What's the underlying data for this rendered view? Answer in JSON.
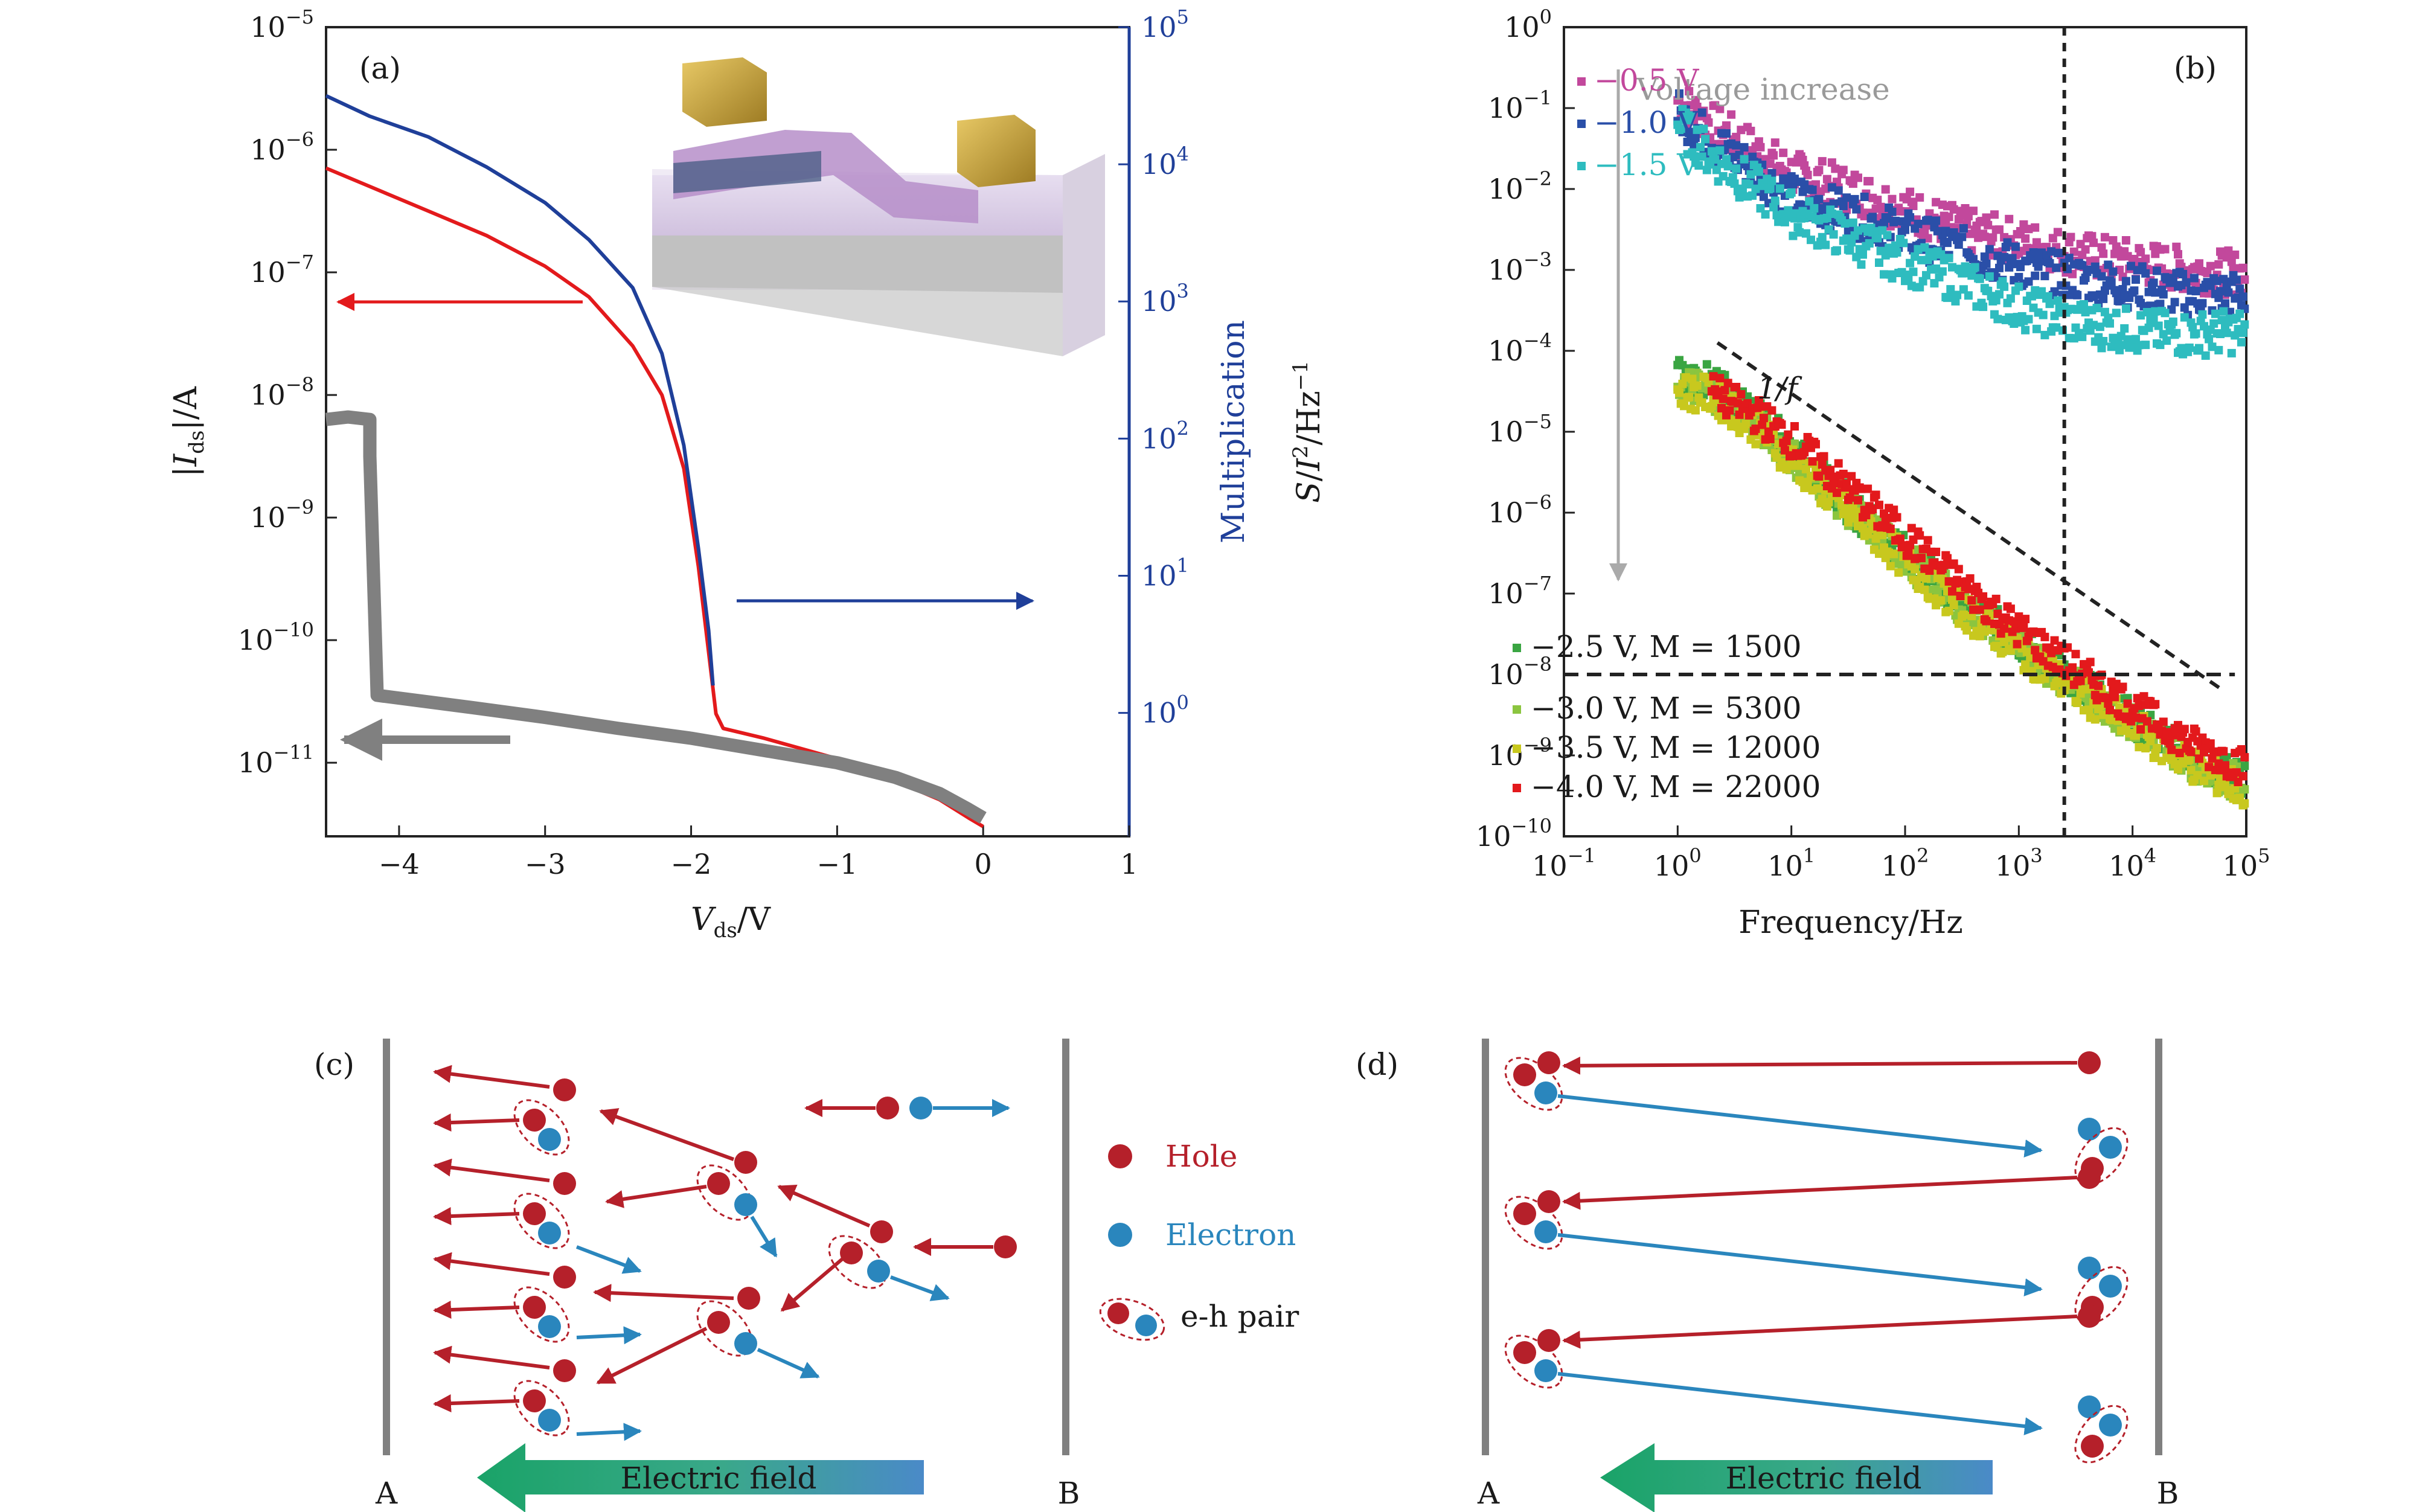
{
  "panels": {
    "a": {
      "label": "(a)"
    },
    "b": {
      "label": "(b)"
    },
    "c": {
      "label": "(c)"
    },
    "d": {
      "label": "(d)"
    }
  },
  "chart_data": [
    {
      "panel": "(a)",
      "type": "line",
      "xlabel": "V_ds/V",
      "ylabel": "|I_ds|/A",
      "y2label": "Multiplication",
      "xlim": [
        -4.5,
        1.0
      ],
      "ylim_log10": [
        -11.6,
        -5
      ],
      "y2lim_log10": [
        -0.9,
        5
      ],
      "x_ticks": [
        "−4",
        "−3",
        "−2",
        "−1",
        "0",
        "1"
      ],
      "x_tick_values": [
        -4,
        -3,
        -2,
        -1,
        0,
        1
      ],
      "y_ticks": [
        "10^-11",
        "10^-10",
        "10^-9",
        "10^-8",
        "10^-7",
        "10^-6",
        "10^-5"
      ],
      "y_tick_exponents": [
        -11,
        -10,
        -9,
        -8,
        -7,
        -6,
        -5
      ],
      "y2_ticks": [
        "10^0",
        "10^1",
        "10^2",
        "10^3",
        "10^4",
        "10^5"
      ],
      "y2_tick_exponents": [
        0,
        1,
        2,
        3,
        4,
        5
      ],
      "series": [
        {
          "color": "#e31a1c",
          "axis": "left",
          "points": [
            [
              -4.5,
              -6.15
            ],
            [
              -4.2,
              -6.3
            ],
            [
              -3.8,
              -6.5
            ],
            [
              -3.4,
              -6.7
            ],
            [
              -3.0,
              -6.95
            ],
            [
              -2.7,
              -7.2
            ],
            [
              -2.4,
              -7.6
            ],
            [
              -2.2,
              -8.0
            ],
            [
              -2.05,
              -8.6
            ],
            [
              -1.95,
              -9.4
            ],
            [
              -1.88,
              -10.1
            ],
            [
              -1.83,
              -10.6
            ],
            [
              -1.78,
              -10.72
            ],
            [
              -1.5,
              -10.8
            ],
            [
              -1.2,
              -10.9
            ],
            [
              -0.9,
              -11.0
            ],
            [
              -0.6,
              -11.15
            ],
            [
              -0.3,
              -11.3
            ],
            [
              -0.1,
              -11.45
            ],
            [
              0.0,
              -11.52
            ]
          ]
        },
        {
          "color": "#1f3f99",
          "axis": "right",
          "points": [
            [
              -4.5,
              4.5
            ],
            [
              -4.2,
              4.35
            ],
            [
              -3.8,
              4.2
            ],
            [
              -3.4,
              3.98
            ],
            [
              -3.0,
              3.72
            ],
            [
              -2.7,
              3.45
            ],
            [
              -2.4,
              3.1
            ],
            [
              -2.2,
              2.62
            ],
            [
              -2.05,
              1.95
            ],
            [
              -1.95,
              1.2
            ],
            [
              -1.88,
              0.6
            ],
            [
              -1.85,
              0.2
            ]
          ]
        },
        {
          "color": "#808080",
          "axis": "left",
          "points": [
            [
              -4.5,
              -8.2
            ],
            [
              -4.35,
              -8.18
            ],
            [
              -4.2,
              -8.2
            ],
            [
              -4.2,
              -8.5
            ],
            [
              -4.15,
              -10.45
            ],
            [
              -3.5,
              -10.55
            ],
            [
              -3.0,
              -10.63
            ],
            [
              -2.5,
              -10.72
            ],
            [
              -2.0,
              -10.8
            ],
            [
              -1.5,
              -10.9
            ],
            [
              -1.0,
              -11.0
            ],
            [
              -0.6,
              -11.12
            ],
            [
              -0.3,
              -11.25
            ],
            [
              -0.1,
              -11.38
            ],
            [
              0.0,
              -11.45
            ]
          ]
        }
      ]
    },
    {
      "panel": "(b)",
      "type": "scatter",
      "xlabel": "Frequency/Hz",
      "ylabel": "S/I^2/Hz^-1",
      "xlim_log10": [
        -1,
        5
      ],
      "ylim_log10": [
        -10,
        0
      ],
      "x_ticks": [
        "10^-1",
        "10^0",
        "10^1",
        "10^2",
        "10^3",
        "10^4",
        "10^5"
      ],
      "x_tick_exponents": [
        -1,
        0,
        1,
        2,
        3,
        4,
        5
      ],
      "y_ticks": [
        "10^-10",
        "10^-9",
        "10^-8",
        "10^-7",
        "10^-6",
        "10^-5",
        "10^-4",
        "10^-3",
        "10^-2",
        "10^-1",
        "10^0"
      ],
      "y_tick_exponents": [
        -10,
        -9,
        -8,
        -7,
        -6,
        -5,
        -4,
        -3,
        -2,
        -1,
        0
      ],
      "series": [
        {
          "name": "−0.5 V",
          "color": "#c2489c",
          "points_log10": [
            [
              0,
              -0.9
            ],
            [
              0.3,
              -1.2
            ],
            [
              1,
              -1.8
            ],
            [
              1.5,
              -2.0
            ],
            [
              2,
              -2.25
            ],
            [
              2.5,
              -2.5
            ],
            [
              3,
              -2.65
            ],
            [
              3.5,
              -2.8
            ],
            [
              4,
              -2.9
            ],
            [
              4.5,
              -3.0
            ],
            [
              5,
              -3.05
            ]
          ]
        },
        {
          "name": "−1.0 V",
          "color": "#2a4fa8",
          "points_log10": [
            [
              0,
              -1.05
            ],
            [
              0.3,
              -1.4
            ],
            [
              1,
              -2.1
            ],
            [
              1.5,
              -2.3
            ],
            [
              2,
              -2.55
            ],
            [
              2.5,
              -2.75
            ],
            [
              3,
              -2.95
            ],
            [
              3.5,
              -3.1
            ],
            [
              4,
              -3.2
            ],
            [
              4.5,
              -3.3
            ],
            [
              5,
              -3.3
            ]
          ]
        },
        {
          "name": "−1.5 V",
          "color": "#2ebcbf",
          "points_log10": [
            [
              0,
              -1.2
            ],
            [
              0.3,
              -1.6
            ],
            [
              1,
              -2.3
            ],
            [
              1.5,
              -2.6
            ],
            [
              2,
              -2.9
            ],
            [
              2.5,
              -3.15
            ],
            [
              3,
              -3.45
            ],
            [
              3.5,
              -3.65
            ],
            [
              4,
              -3.75
            ],
            [
              4.5,
              -3.8
            ],
            [
              5,
              -3.75
            ]
          ]
        },
        {
          "name": "−2.5 V, M = 1500",
          "color": "#3aa542",
          "points_log10": [
            [
              0,
              -4.3
            ],
            [
              0.3,
              -4.4
            ],
            [
              0.7,
              -4.8
            ],
            [
              1,
              -5.2
            ],
            [
              1.5,
              -5.9
            ],
            [
              2,
              -6.5
            ],
            [
              2.5,
              -7.1
            ],
            [
              3,
              -7.6
            ],
            [
              3.5,
              -8.1
            ],
            [
              4,
              -8.55
            ],
            [
              4.5,
              -9.0
            ],
            [
              5,
              -9.35
            ]
          ]
        },
        {
          "name": "−3.0 V, M = 5300",
          "color": "#8bc53f",
          "points_log10": [
            [
              0,
              -4.4
            ],
            [
              0.3,
              -4.5
            ],
            [
              0.7,
              -4.9
            ],
            [
              1,
              -5.3
            ],
            [
              1.5,
              -5.95
            ],
            [
              2,
              -6.55
            ],
            [
              2.5,
              -7.15
            ],
            [
              3,
              -7.65
            ],
            [
              3.5,
              -8.15
            ],
            [
              4,
              -8.6
            ],
            [
              4.5,
              -9.05
            ],
            [
              5,
              -9.4
            ]
          ]
        },
        {
          "name": "−3.5 V, M = 12000",
          "color": "#c8c81e",
          "points_log10": [
            [
              0,
              -4.5
            ],
            [
              0.3,
              -4.55
            ],
            [
              0.7,
              -4.95
            ],
            [
              1,
              -5.35
            ],
            [
              1.5,
              -6.0
            ],
            [
              2,
              -6.6
            ],
            [
              2.5,
              -7.2
            ],
            [
              3,
              -7.7
            ],
            [
              3.5,
              -8.2
            ],
            [
              4,
              -8.65
            ],
            [
              4.5,
              -9.1
            ],
            [
              5,
              -9.45
            ]
          ]
        },
        {
          "name": "−4.0 V, M = 22000",
          "color": "#e3191c",
          "points_log10": [
            [
              0.3,
              -4.5
            ],
            [
              0.7,
              -4.8
            ],
            [
              1,
              -5.1
            ],
            [
              1.5,
              -5.7
            ],
            [
              2,
              -6.3
            ],
            [
              2.5,
              -6.9
            ],
            [
              3,
              -7.45
            ],
            [
              3.5,
              -7.95
            ],
            [
              4,
              -8.4
            ],
            [
              4.5,
              -8.85
            ],
            [
              5,
              -9.15
            ]
          ]
        }
      ],
      "reference_lines": {
        "one_over_f_label": "1/f",
        "one_over_f_log10": [
          [
            0.35,
            -3.9
          ],
          [
            4.8,
            -8.2
          ]
        ],
        "vline_frequency_log10": 3.4,
        "hline_value_log10": -8
      },
      "arrow_label": "Voltage increase"
    }
  ],
  "diagram_c": {
    "label_left": "A",
    "label_right": "B",
    "field_label": "Electric field",
    "legend": {
      "hole": "Hole",
      "electron": "Electron",
      "pair": "e-h pair"
    }
  },
  "diagram_d": {
    "label_left": "A",
    "label_right": "B",
    "field_label": "Electric field"
  },
  "colors": {
    "hole": "#b5202a",
    "electron": "#2a86bd",
    "gray_line": "#808080",
    "axis_blue": "#1f3f99"
  }
}
